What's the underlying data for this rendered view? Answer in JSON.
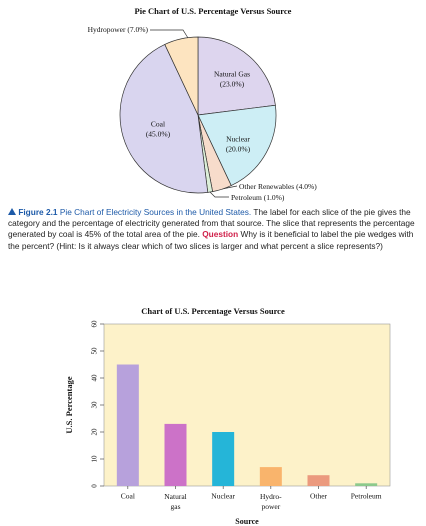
{
  "chart_data": [
    {
      "type": "pie",
      "title": "Pie Chart of U.S. Percentage Versus Source",
      "categories": [
        "Natural Gas",
        "Nuclear",
        "Other Renewables",
        "Petroleum",
        "Coal",
        "Hydropower"
      ],
      "values": [
        23.0,
        20.0,
        4.0,
        1.0,
        45.0,
        7.0
      ],
      "value_labels": [
        "(23.0%)",
        "(20.0%)",
        "(4.0%)",
        "(1.0%)",
        "(45.0%)",
        "(7.0%)"
      ],
      "colors": [
        "#ddd5ee",
        "#cdeef5",
        "#f7dccb",
        "#dcefd8",
        "#d9d5ef",
        "#fde4c0"
      ]
    },
    {
      "type": "bar",
      "title": "Chart of U.S. Percentage Versus Source",
      "categories": [
        "Coal",
        "Natural\ngas",
        "Nuclear",
        "Hydro-\npower",
        "Other",
        "Petroleum"
      ],
      "values": [
        45,
        23,
        20,
        7,
        4,
        1
      ],
      "colors": [
        "#b7a1dc",
        "#cc72c8",
        "#25b5d8",
        "#f9b46c",
        "#eb9a7e",
        "#8cc98c"
      ],
      "xlabel": "Source",
      "ylabel": "U.S. Percentage",
      "ylim": [
        0,
        60
      ],
      "yticks": [
        0,
        10,
        20,
        30,
        40,
        50,
        60
      ],
      "background": "#fdf2c9"
    }
  ],
  "caption": {
    "label": "Figure 2.1",
    "title": "Pie Chart of Electricity Sources in the United States.",
    "text": "The label for each slice of the pie gives the category and the percentage of electricity generated from that source. The slice that represents the percentage generated by coal is 45% of the total area of the pie.",
    "question_label": "Question",
    "question": "Why is it beneficial to label the pie wedges with the percent? (Hint: Is it always clear which of two slices is larger and what percent a slice represents?)"
  }
}
